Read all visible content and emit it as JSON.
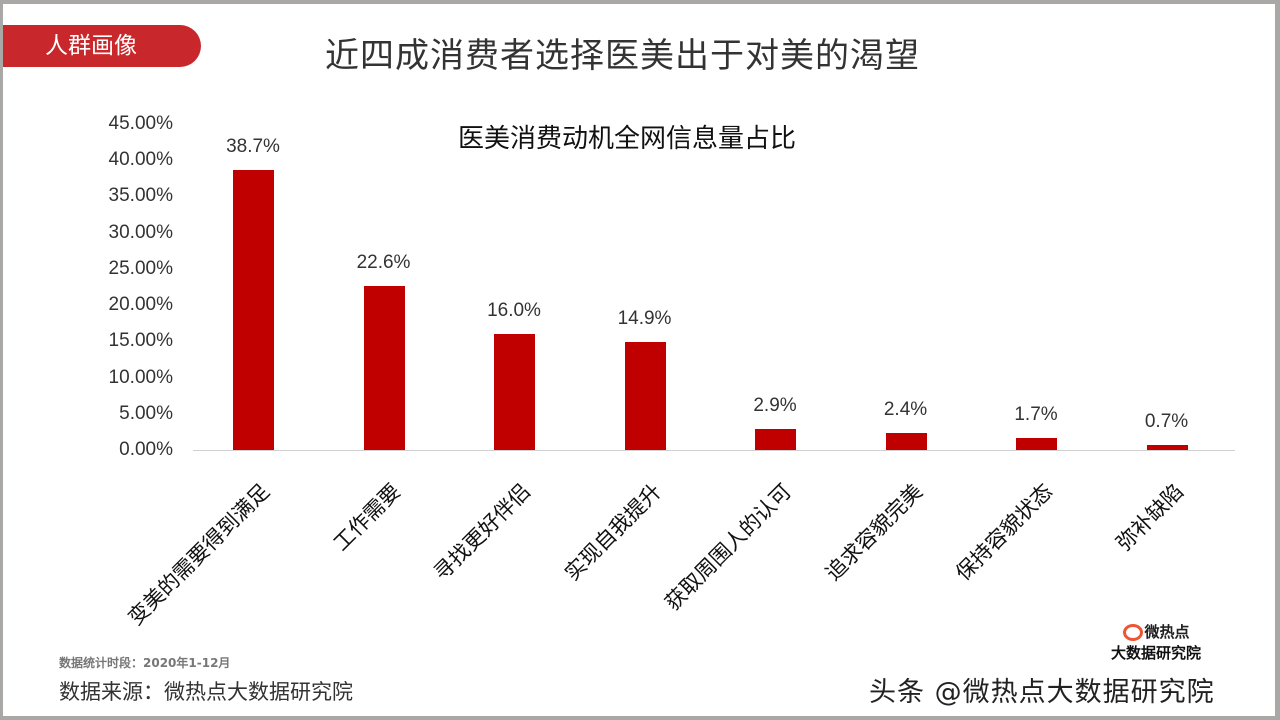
{
  "header": {
    "tag": "人群画像",
    "title": "近四成消费者选择医美出于对美的渴望",
    "tag_color": "#c8282b"
  },
  "chart_data": {
    "type": "bar",
    "title": "医美消费动机全网信息量占比",
    "categories": [
      "变美的需要得到满足",
      "工作需要",
      "寻找更好伴侣",
      "实现自我提升",
      "获取周围人的认可",
      "追求容貌完美",
      "保持容貌状态",
      "弥补缺陷"
    ],
    "values": [
      38.7,
      22.6,
      16.0,
      14.9,
      2.9,
      2.4,
      1.7,
      0.7
    ],
    "value_labels": [
      "38.7%",
      "22.6%",
      "16.0%",
      "14.9%",
      "2.9%",
      "2.4%",
      "1.7%",
      "0.7%"
    ],
    "xlabel": "",
    "ylabel": "",
    "ylim": [
      0,
      45
    ],
    "yticks": [
      "0.00%",
      "5.00%",
      "10.00%",
      "15.00%",
      "20.00%",
      "25.00%",
      "30.00%",
      "35.00%",
      "40.00%",
      "45.00%"
    ],
    "grid": false,
    "legend": "none",
    "bar_color": "#c00000"
  },
  "footer": {
    "period": "数据统计时段：2020年1-12月",
    "source": "数据来源：微热点大数据研究院",
    "logo_top": "微热点",
    "logo_bottom": "大数据研究院",
    "watermark": "头条 @微热点大数据研究院"
  }
}
